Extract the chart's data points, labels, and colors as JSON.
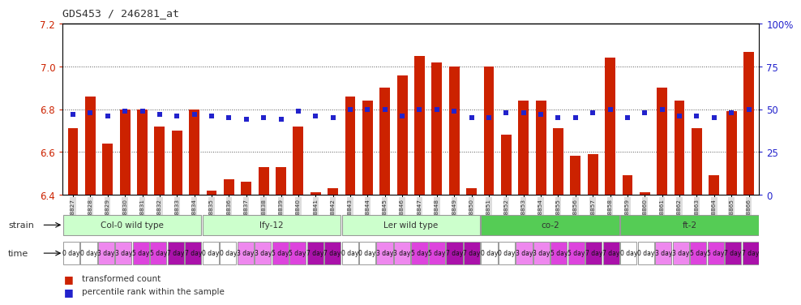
{
  "title": "GDS453 / 246281_at",
  "samples": [
    "GSM8827",
    "GSM8828",
    "GSM8829",
    "GSM8830",
    "GSM8831",
    "GSM8832",
    "GSM8833",
    "GSM8834",
    "GSM8835",
    "GSM8836",
    "GSM8837",
    "GSM8838",
    "GSM8839",
    "GSM8840",
    "GSM8841",
    "GSM8842",
    "GSM8843",
    "GSM8844",
    "GSM8845",
    "GSM8846",
    "GSM8847",
    "GSM8848",
    "GSM8849",
    "GSM8850",
    "GSM8851",
    "GSM8852",
    "GSM8853",
    "GSM8854",
    "GSM8855",
    "GSM8856",
    "GSM8857",
    "GSM8858",
    "GSM8859",
    "GSM8860",
    "GSM8861",
    "GSM8862",
    "GSM8863",
    "GSM8864",
    "GSM8865",
    "GSM8866"
  ],
  "bar_values": [
    6.71,
    6.86,
    6.64,
    6.8,
    6.8,
    6.72,
    6.7,
    6.8,
    6.42,
    6.47,
    6.46,
    6.53,
    6.53,
    6.72,
    6.41,
    6.43,
    6.86,
    6.84,
    6.9,
    6.96,
    7.05,
    7.02,
    7.0,
    6.43,
    7.0,
    6.68,
    6.84,
    6.84,
    6.71,
    6.58,
    6.59,
    7.04,
    6.49,
    6.41,
    6.9,
    6.84,
    6.71,
    6.49,
    6.79,
    7.07
  ],
  "blue_pct": [
    47,
    48,
    46,
    49,
    49,
    47,
    46,
    47,
    46,
    45,
    44,
    45,
    44,
    49,
    46,
    45,
    50,
    50,
    50,
    46,
    50,
    50,
    49,
    45,
    45,
    48,
    48,
    47,
    45,
    45,
    48,
    50,
    45,
    48,
    50,
    46,
    46,
    45,
    48,
    50
  ],
  "ylim": [
    6.4,
    7.2
  ],
  "yticks_left": [
    6.4,
    6.6,
    6.8,
    7.0,
    7.2
  ],
  "yticks_right_pct": [
    0,
    25,
    50,
    75,
    100
  ],
  "yticks_right_labels": [
    "0",
    "25",
    "50",
    "75",
    "100%"
  ],
  "strains": [
    {
      "name": "Col-0 wild type",
      "start": 0,
      "end": 8,
      "color": "#ccffcc"
    },
    {
      "name": "lfy-12",
      "start": 8,
      "end": 16,
      "color": "#ccffcc"
    },
    {
      "name": "Ler wild type",
      "start": 16,
      "end": 24,
      "color": "#ccffcc"
    },
    {
      "name": "co-2",
      "start": 24,
      "end": 32,
      "color": "#55cc55"
    },
    {
      "name": "ft-2",
      "start": 32,
      "end": 40,
      "color": "#55cc55"
    }
  ],
  "time_labels": [
    "0 day",
    "3 day",
    "5 day",
    "7 day",
    "0 day",
    "3 day",
    "5 day",
    "7 day",
    "0 day",
    "3 day",
    "5 day",
    "7 day",
    "0 day",
    "3 day",
    "5 day",
    "7 day",
    "0 day",
    "3 day",
    "5 day",
    "7 day"
  ],
  "time_colors": [
    "#ffffff",
    "#ee88ee",
    "#dd44dd",
    "#aa11aa",
    "#ffffff",
    "#ee88ee",
    "#dd44dd",
    "#aa11aa",
    "#ffffff",
    "#ee88ee",
    "#dd44dd",
    "#aa11aa",
    "#ffffff",
    "#ee88ee",
    "#dd44dd",
    "#aa11aa",
    "#ffffff",
    "#ee88ee",
    "#dd44dd",
    "#aa11aa"
  ],
  "bar_color": "#cc2200",
  "blue_color": "#2222cc",
  "bg_color": "#ffffff",
  "grid_color": "#555555",
  "left_tick_color": "#cc2200",
  "right_tick_color": "#2222cc",
  "xtick_bg": "#dddddd"
}
